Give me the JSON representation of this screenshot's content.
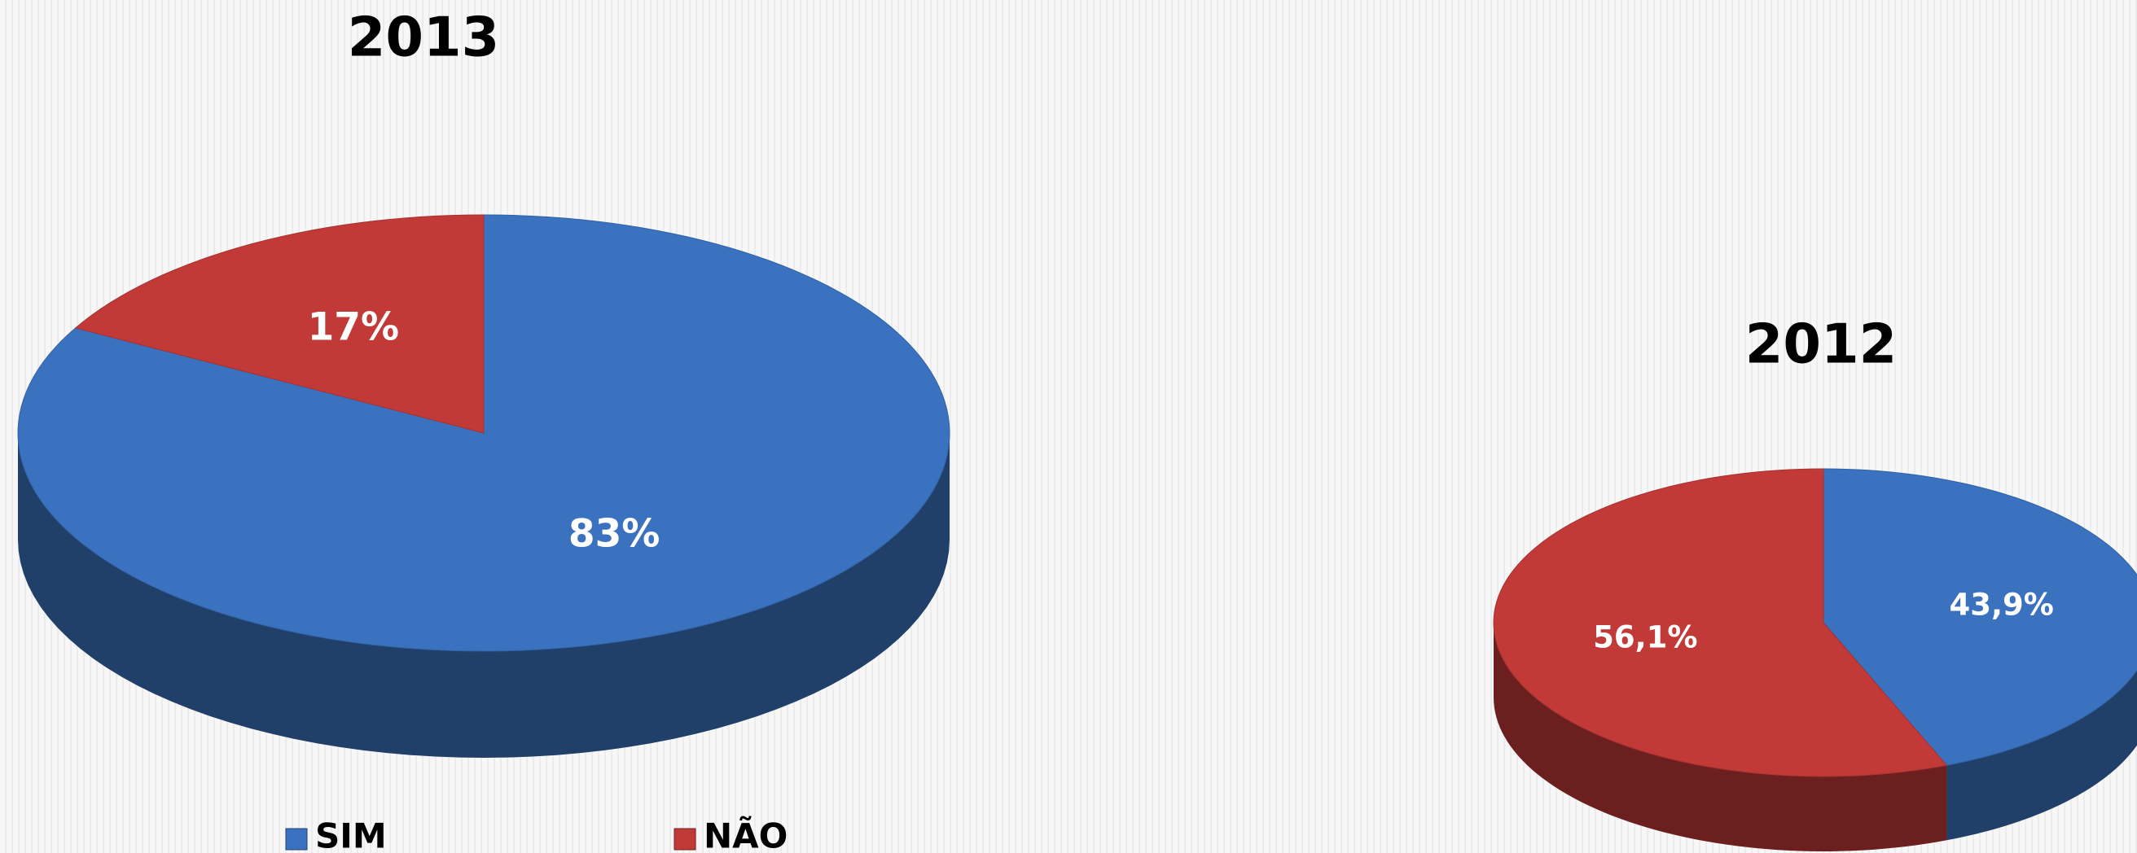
{
  "chart_data": [
    {
      "type": "pie",
      "title": "2013",
      "categories": [
        "SIM",
        "NÃO"
      ],
      "values": [
        83,
        17
      ],
      "value_labels": [
        "83%",
        "17%"
      ],
      "colors": [
        "#3a72bf",
        "#c23a38"
      ],
      "legend": true
    },
    {
      "type": "pie",
      "title": "2012",
      "values": [
        43.9,
        56.1
      ],
      "value_labels": [
        "43,9%",
        "56,1%"
      ],
      "colors": [
        "#3a72bf",
        "#c23a38"
      ],
      "legend": false
    }
  ]
}
